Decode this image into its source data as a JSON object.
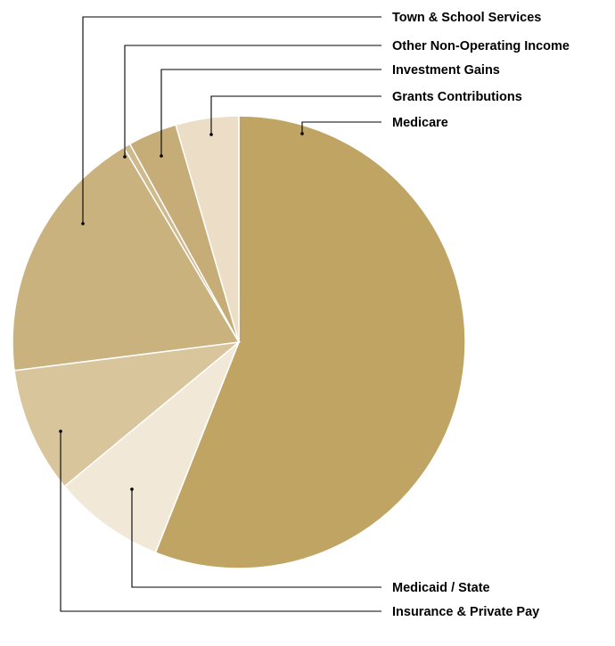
{
  "chart_data": {
    "type": "pie",
    "legend": "outside-right with leader lines",
    "slices": [
      {
        "label": "Medicare",
        "value": 56.0,
        "color": "#bfa463"
      },
      {
        "label": "Medicaid / State",
        "value": 8.0,
        "color": "#f2e8d8"
      },
      {
        "label": "Insurance & Private Pay",
        "value": 9.0,
        "color": "#d9c59b"
      },
      {
        "label": "Town & School Services",
        "value": 18.5,
        "color": "#c9b27e"
      },
      {
        "label": "Other Non-Operating Income",
        "value": 0.5,
        "color": "#ceba8c"
      },
      {
        "label": "Investment Gains",
        "value": 3.5,
        "color": "#c6ad78"
      },
      {
        "label": "Grants Contributions",
        "value": 4.5,
        "color": "#ecdec6"
      }
    ]
  }
}
